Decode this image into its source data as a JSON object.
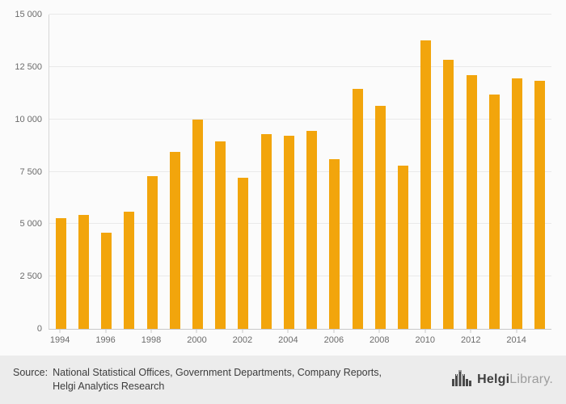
{
  "chart_data": {
    "type": "bar",
    "title": "",
    "xlabel": "",
    "ylabel": "",
    "categories": [
      1994,
      1995,
      1996,
      1997,
      1998,
      1999,
      2000,
      2001,
      2002,
      2003,
      2004,
      2005,
      2006,
      2007,
      2008,
      2009,
      2010,
      2011,
      2012,
      2013,
      2014,
      2015
    ],
    "values": [
      5300,
      5450,
      4600,
      5600,
      7300,
      8450,
      10000,
      8950,
      7200,
      9300,
      9200,
      9450,
      8100,
      11450,
      10650,
      7800,
      13750,
      12850,
      12100,
      11200,
      11950,
      11850
    ],
    "ylim": [
      0,
      15000
    ],
    "ytick_step": 2500,
    "ytick_labels": [
      "0",
      "2 500",
      "5 000",
      "7 500",
      "10 000",
      "12 500",
      "15 000"
    ],
    "xtick_years": [
      1994,
      1996,
      1998,
      2000,
      2002,
      2004,
      2006,
      2008,
      2010,
      2012,
      2014
    ],
    "grid": true,
    "legend_position": "none",
    "bar_color": "#F2A50C"
  },
  "footer": {
    "source_label": "Source:",
    "source_line1": "National Statistical Offices, Government Departments, Company Reports,",
    "source_line2": "Helgi Analytics Research",
    "logo_helgi": "Helgi",
    "logo_library": "Library",
    "logo_dot": "."
  }
}
